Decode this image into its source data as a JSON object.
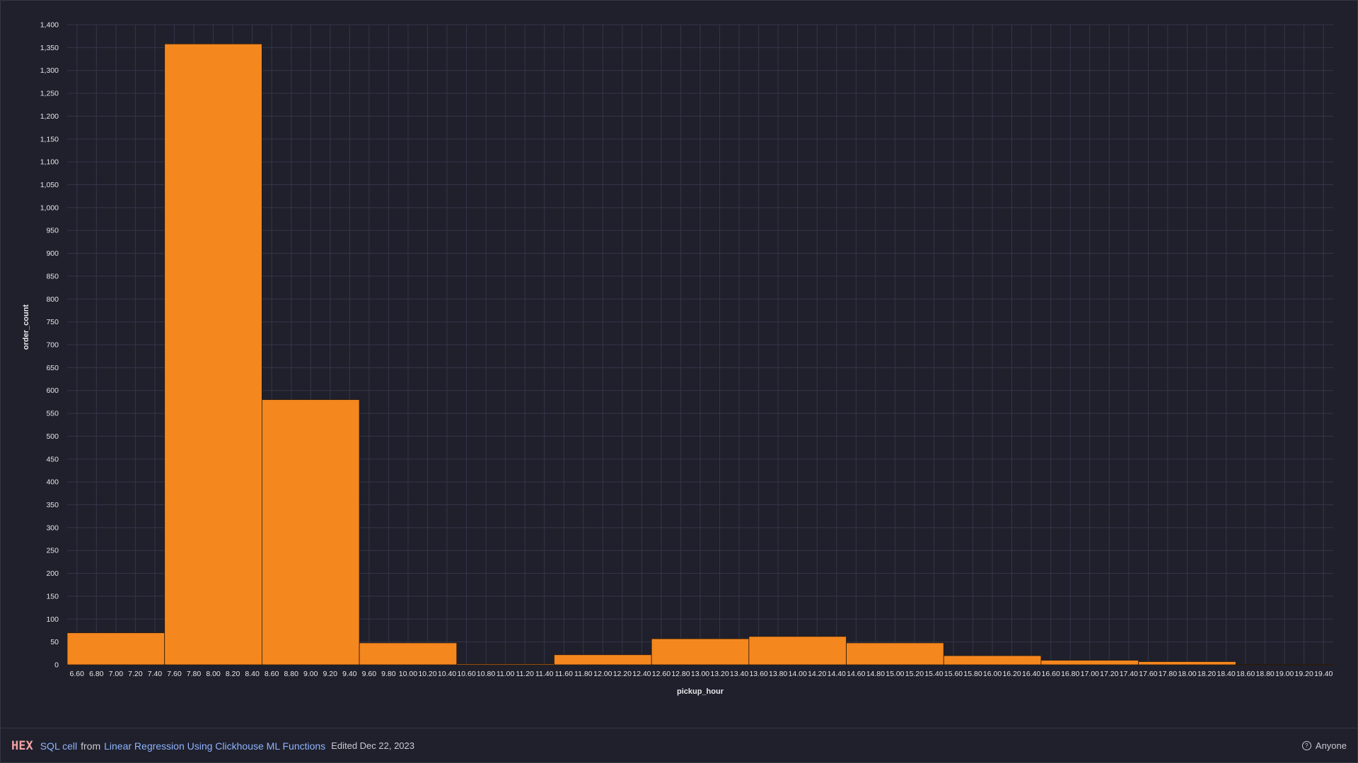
{
  "colors": {
    "background": "#1f202b",
    "bar_fill": "#f5871f",
    "bar_stroke": "#2a1a0a",
    "grid": "#34364a",
    "text": "#e6e6ea"
  },
  "chart_data": {
    "type": "bar",
    "title": "",
    "xlabel": "pickup_hour",
    "ylabel": "order_count",
    "grid": true,
    "legend": "none",
    "xlim": [
      6.5,
      19.5
    ],
    "ylim": [
      0,
      1400
    ],
    "x_ticks": [
      "6.60",
      "6.80",
      "7.00",
      "7.20",
      "7.40",
      "7.60",
      "7.80",
      "8.00",
      "8.20",
      "8.40",
      "8.60",
      "8.80",
      "9.00",
      "9.20",
      "9.40",
      "9.60",
      "9.80",
      "10.00",
      "10.20",
      "10.40",
      "10.60",
      "10.80",
      "11.00",
      "11.20",
      "11.40",
      "11.60",
      "11.80",
      "12.00",
      "12.20",
      "12.40",
      "12.60",
      "12.80",
      "13.00",
      "13.20",
      "13.40",
      "13.60",
      "13.80",
      "14.00",
      "14.20",
      "14.40",
      "14.60",
      "14.80",
      "15.00",
      "15.20",
      "15.40",
      "15.60",
      "15.80",
      "16.00",
      "16.20",
      "16.40",
      "16.60",
      "16.80",
      "17.00",
      "17.20",
      "17.40",
      "17.60",
      "17.80",
      "18.00",
      "18.20",
      "18.40",
      "18.60",
      "18.80",
      "19.00",
      "19.20",
      "19.40"
    ],
    "y_ticks": [
      "0",
      "50",
      "100",
      "150",
      "200",
      "250",
      "300",
      "350",
      "400",
      "450",
      "500",
      "550",
      "600",
      "650",
      "700",
      "750",
      "800",
      "850",
      "900",
      "950",
      "1,000",
      "1,050",
      "1,100",
      "1,150",
      "1,200",
      "1,250",
      "1,300",
      "1,350",
      "1,400"
    ],
    "bins": [
      {
        "x0": 6.5,
        "x1": 7.5,
        "value": 70
      },
      {
        "x0": 7.5,
        "x1": 8.5,
        "value": 1358
      },
      {
        "x0": 8.5,
        "x1": 9.5,
        "value": 580
      },
      {
        "x0": 9.5,
        "x1": 10.5,
        "value": 48
      },
      {
        "x0": 10.5,
        "x1": 11.5,
        "value": 2
      },
      {
        "x0": 11.5,
        "x1": 12.5,
        "value": 22
      },
      {
        "x0": 12.5,
        "x1": 13.5,
        "value": 57
      },
      {
        "x0": 13.5,
        "x1": 14.5,
        "value": 62
      },
      {
        "x0": 14.5,
        "x1": 15.5,
        "value": 48
      },
      {
        "x0": 15.5,
        "x1": 16.5,
        "value": 20
      },
      {
        "x0": 16.5,
        "x1": 17.5,
        "value": 10
      },
      {
        "x0": 17.5,
        "x1": 18.5,
        "value": 7
      },
      {
        "x0": 18.5,
        "x1": 19.5,
        "value": 1
      }
    ]
  },
  "footer": {
    "logo": "HEX",
    "cell_label": "SQL cell",
    "from_text": "from",
    "project_name": "Linear Regression Using Clickhouse ML Functions",
    "edited": "Edited Dec 22, 2023",
    "access_icon": "globe-icon",
    "access_label": "Anyone"
  }
}
